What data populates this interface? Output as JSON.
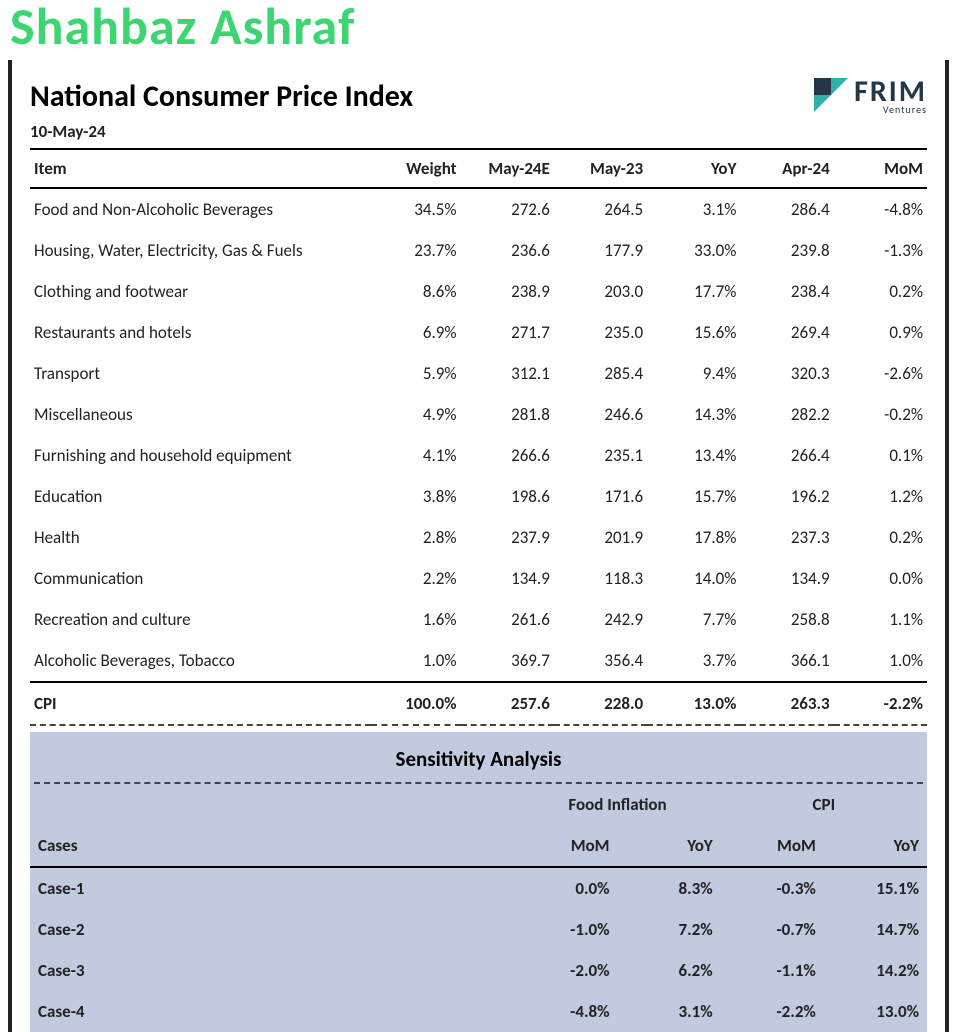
{
  "topCropText": "Shahbaz Ashraf",
  "title": "National Consumer Price Index",
  "date": "10-May-24",
  "logo": {
    "main": "FRIM",
    "sub": "Ventures",
    "color": "#243746",
    "accent": "#2fb3a7"
  },
  "mainTable": {
    "columns": [
      "Item",
      "Weight",
      "May-24E",
      "May-23",
      "YoY",
      "Apr-24",
      "MoM"
    ],
    "rows": [
      [
        "Food and Non-Alcoholic Beverages",
        "34.5%",
        "272.6",
        "264.5",
        "3.1%",
        "286.4",
        "-4.8%"
      ],
      [
        "Housing, Water, Electricity, Gas & Fuels",
        "23.7%",
        "236.6",
        "177.9",
        "33.0%",
        "239.8",
        "-1.3%"
      ],
      [
        "Clothing and footwear",
        "8.6%",
        "238.9",
        "203.0",
        "17.7%",
        "238.4",
        "0.2%"
      ],
      [
        "Restaurants and hotels",
        "6.9%",
        "271.7",
        "235.0",
        "15.6%",
        "269.4",
        "0.9%"
      ],
      [
        "Transport",
        "5.9%",
        "312.1",
        "285.4",
        "9.4%",
        "320.3",
        "-2.6%"
      ],
      [
        "Miscellaneous",
        "4.9%",
        "281.8",
        "246.6",
        "14.3%",
        "282.2",
        "-0.2%"
      ],
      [
        "Furnishing and household equipment",
        "4.1%",
        "266.6",
        "235.1",
        "13.4%",
        "266.4",
        "0.1%"
      ],
      [
        "Education",
        "3.8%",
        "198.6",
        "171.6",
        "15.7%",
        "196.2",
        "1.2%"
      ],
      [
        "Health",
        "2.8%",
        "237.9",
        "201.9",
        "17.8%",
        "237.3",
        "0.2%"
      ],
      [
        "Communication",
        "2.2%",
        "134.9",
        "118.3",
        "14.0%",
        "134.9",
        "0.0%"
      ],
      [
        "Recreation and culture",
        "1.6%",
        "261.6",
        "242.9",
        "7.7%",
        "258.8",
        "1.1%"
      ],
      [
        "Alcoholic Beverages, Tobacco",
        "1.0%",
        "369.7",
        "356.4",
        "3.7%",
        "366.1",
        "1.0%"
      ]
    ],
    "totalRow": [
      "CPI",
      "100.0%",
      "257.6",
      "228.0",
      "13.0%",
      "263.3",
      "-2.2%"
    ]
  },
  "sensitivity": {
    "heading": "Sensitivity Analysis",
    "groupHeaders": [
      "Food Inflation",
      "CPI"
    ],
    "columns": [
      "Cases",
      "MoM",
      "YoY",
      "MoM",
      "YoY"
    ],
    "rows": [
      [
        "Case-1",
        "0.0%",
        "8.3%",
        "-0.3%",
        "15.1%"
      ],
      [
        "Case-2",
        "-1.0%",
        "7.2%",
        "-0.7%",
        "14.7%"
      ],
      [
        "Case-3",
        "-2.0%",
        "6.2%",
        "-1.1%",
        "14.2%"
      ],
      [
        "Case-4",
        "-4.8%",
        "3.1%",
        "-2.2%",
        "13.0%"
      ]
    ],
    "backgroundColor": "#c1cade",
    "groupBackground": "#e6e9ed"
  },
  "style": {
    "borderColor": "#000000",
    "textColor": "#222222",
    "topTextColor": "#3dd472"
  }
}
